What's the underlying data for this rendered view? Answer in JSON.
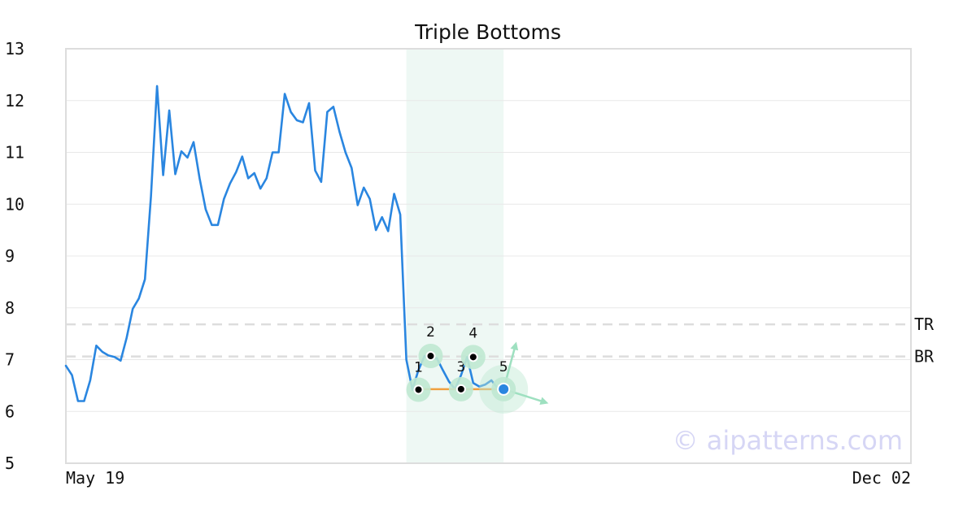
{
  "watermark": "© aipatterns.com",
  "chart_data": {
    "type": "line",
    "title": "Triple Bottoms",
    "xlabel": "",
    "ylabel": "",
    "ylim": [
      5,
      13
    ],
    "yticks": [
      "5",
      "6",
      "7",
      "8",
      "9",
      "10",
      "11",
      "12",
      "13"
    ],
    "xticks": [
      "May 19",
      "Dec 02"
    ],
    "x_count": 140,
    "grid": true,
    "series": [
      {
        "color": "#2a86e0",
        "values": [
          6.88,
          6.7,
          6.2,
          6.2,
          6.6,
          7.27,
          7.15,
          7.08,
          7.05,
          6.98,
          7.42,
          7.98,
          8.18,
          8.55,
          10.15,
          12.28,
          10.56,
          11.81,
          10.58,
          11.02,
          10.9,
          11.2,
          10.5,
          9.9,
          9.6,
          9.6,
          10.1,
          10.4,
          10.62,
          10.92,
          10.5,
          10.6,
          10.3,
          10.5,
          11.0,
          11.0,
          12.13,
          11.78,
          11.62,
          11.58,
          11.95,
          10.65,
          10.43,
          11.78,
          11.88,
          11.4,
          11.0,
          10.7,
          9.98,
          10.32,
          10.1,
          9.5,
          9.75,
          9.48,
          10.2,
          9.8,
          7.0,
          6.42,
          6.8,
          7.07,
          7.0,
          7.03,
          6.8,
          6.58,
          6.43,
          6.7,
          7.05,
          6.55,
          6.48,
          6.52,
          6.6,
          6.45
        ]
      }
    ],
    "levels": [
      {
        "label": "TR",
        "value": 7.68
      },
      {
        "label": "BR",
        "value": 7.06
      }
    ],
    "pattern_window": [
      56,
      72
    ],
    "pivots": [
      {
        "label": "1",
        "index": 58,
        "value": 6.42
      },
      {
        "label": "2",
        "index": 60,
        "value": 7.07
      },
      {
        "label": "3",
        "index": 65,
        "value": 6.43
      },
      {
        "label": "4",
        "index": 67,
        "value": 7.05
      },
      {
        "label": "5",
        "index": 72,
        "value": 6.43
      }
    ],
    "bottom_line": {
      "from_index": 58,
      "to_index": 72,
      "value": 6.43
    },
    "projections": [
      {
        "to_index": 74,
        "value": 7.3
      },
      {
        "to_index": 79,
        "value": 6.17
      }
    ],
    "colors": {
      "line": "#2a86e0",
      "bottom_line": "#f0a040",
      "pattern_band": "#eef8f4",
      "pivot_halo": "#bfe8d2",
      "projection": "#9ee0c0",
      "level": "#dddddd",
      "grid": "#e8e8e8",
      "frame": "#dddddd"
    }
  }
}
